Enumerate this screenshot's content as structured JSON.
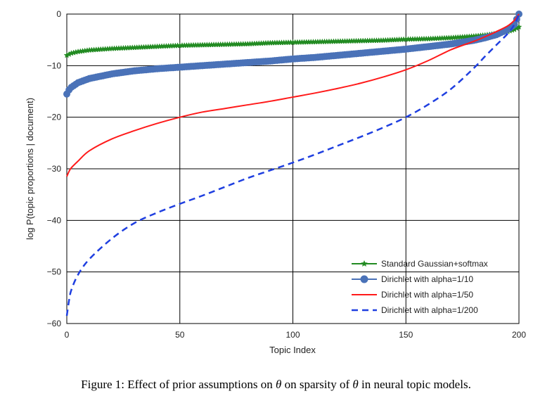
{
  "caption": {
    "prefix": "Figure 1: Effect of prior assumptions on ",
    "theta1": "θ",
    "middle": " on sparsity of ",
    "theta2": "θ",
    "suffix": " in neural topic models."
  },
  "chart_data": {
    "type": "line",
    "xlabel": "Topic Index",
    "ylabel": "log P(topic proportions | document)",
    "xlim": [
      0,
      200
    ],
    "ylim": [
      -60,
      0
    ],
    "xticks": [
      0,
      50,
      100,
      150,
      200
    ],
    "yticks": [
      0,
      -10,
      -20,
      -30,
      -40,
      -50,
      -60
    ],
    "grid": true,
    "legend_position": "lower-right",
    "x": [
      0,
      1,
      2,
      5,
      10,
      20,
      30,
      40,
      50,
      60,
      70,
      80,
      90,
      100,
      110,
      120,
      130,
      140,
      150,
      160,
      170,
      180,
      185,
      190,
      195,
      198,
      200
    ],
    "series": [
      {
        "name": "Standard Gaussian+softmax",
        "color": "#228b22",
        "style": "solid-star",
        "values": [
          -8,
          -7.8,
          -7.6,
          -7.3,
          -7.0,
          -6.7,
          -6.5,
          -6.3,
          -6.1,
          -6.0,
          -5.9,
          -5.8,
          -5.6,
          -5.5,
          -5.4,
          -5.3,
          -5.2,
          -5.1,
          -4.9,
          -4.8,
          -4.6,
          -4.3,
          -4.1,
          -3.8,
          -3.4,
          -3.0,
          -2.5
        ]
      },
      {
        "name": "Dirichlet with alpha=1/10",
        "color": "#4a72b8",
        "style": "solid-circle",
        "values": [
          -15.5,
          -14.7,
          -14.2,
          -13.3,
          -12.5,
          -11.6,
          -11.0,
          -10.6,
          -10.3,
          -10.0,
          -9.7,
          -9.4,
          -9.1,
          -8.7,
          -8.4,
          -8.0,
          -7.6,
          -7.2,
          -6.8,
          -6.3,
          -5.8,
          -5.1,
          -4.6,
          -4.0,
          -3.0,
          -2.0,
          0
        ]
      },
      {
        "name": "Dirichlet with alpha=1/50",
        "color": "#ff1a1a",
        "style": "solid",
        "values": [
          -31.5,
          -30.5,
          -29.8,
          -28.5,
          -26.5,
          -24.2,
          -22.6,
          -21.2,
          -20.0,
          -19.0,
          -18.3,
          -17.6,
          -16.9,
          -16.1,
          -15.3,
          -14.4,
          -13.4,
          -12.2,
          -10.8,
          -9.0,
          -6.9,
          -5.3,
          -4.4,
          -3.4,
          -2.3,
          -1.2,
          0
        ]
      },
      {
        "name": "Dirichlet with alpha=1/200",
        "color": "#1f3fe0",
        "style": "dashed",
        "values": [
          -58.5,
          -55.5,
          -53.5,
          -50.5,
          -47.5,
          -43.5,
          -40.5,
          -38.5,
          -36.8,
          -35.2,
          -33.5,
          -31.8,
          -30.3,
          -28.8,
          -27.2,
          -25.5,
          -23.8,
          -22.0,
          -20.0,
          -17.5,
          -14.5,
          -10.5,
          -8.2,
          -6.0,
          -3.8,
          -2.0,
          0
        ]
      }
    ]
  }
}
